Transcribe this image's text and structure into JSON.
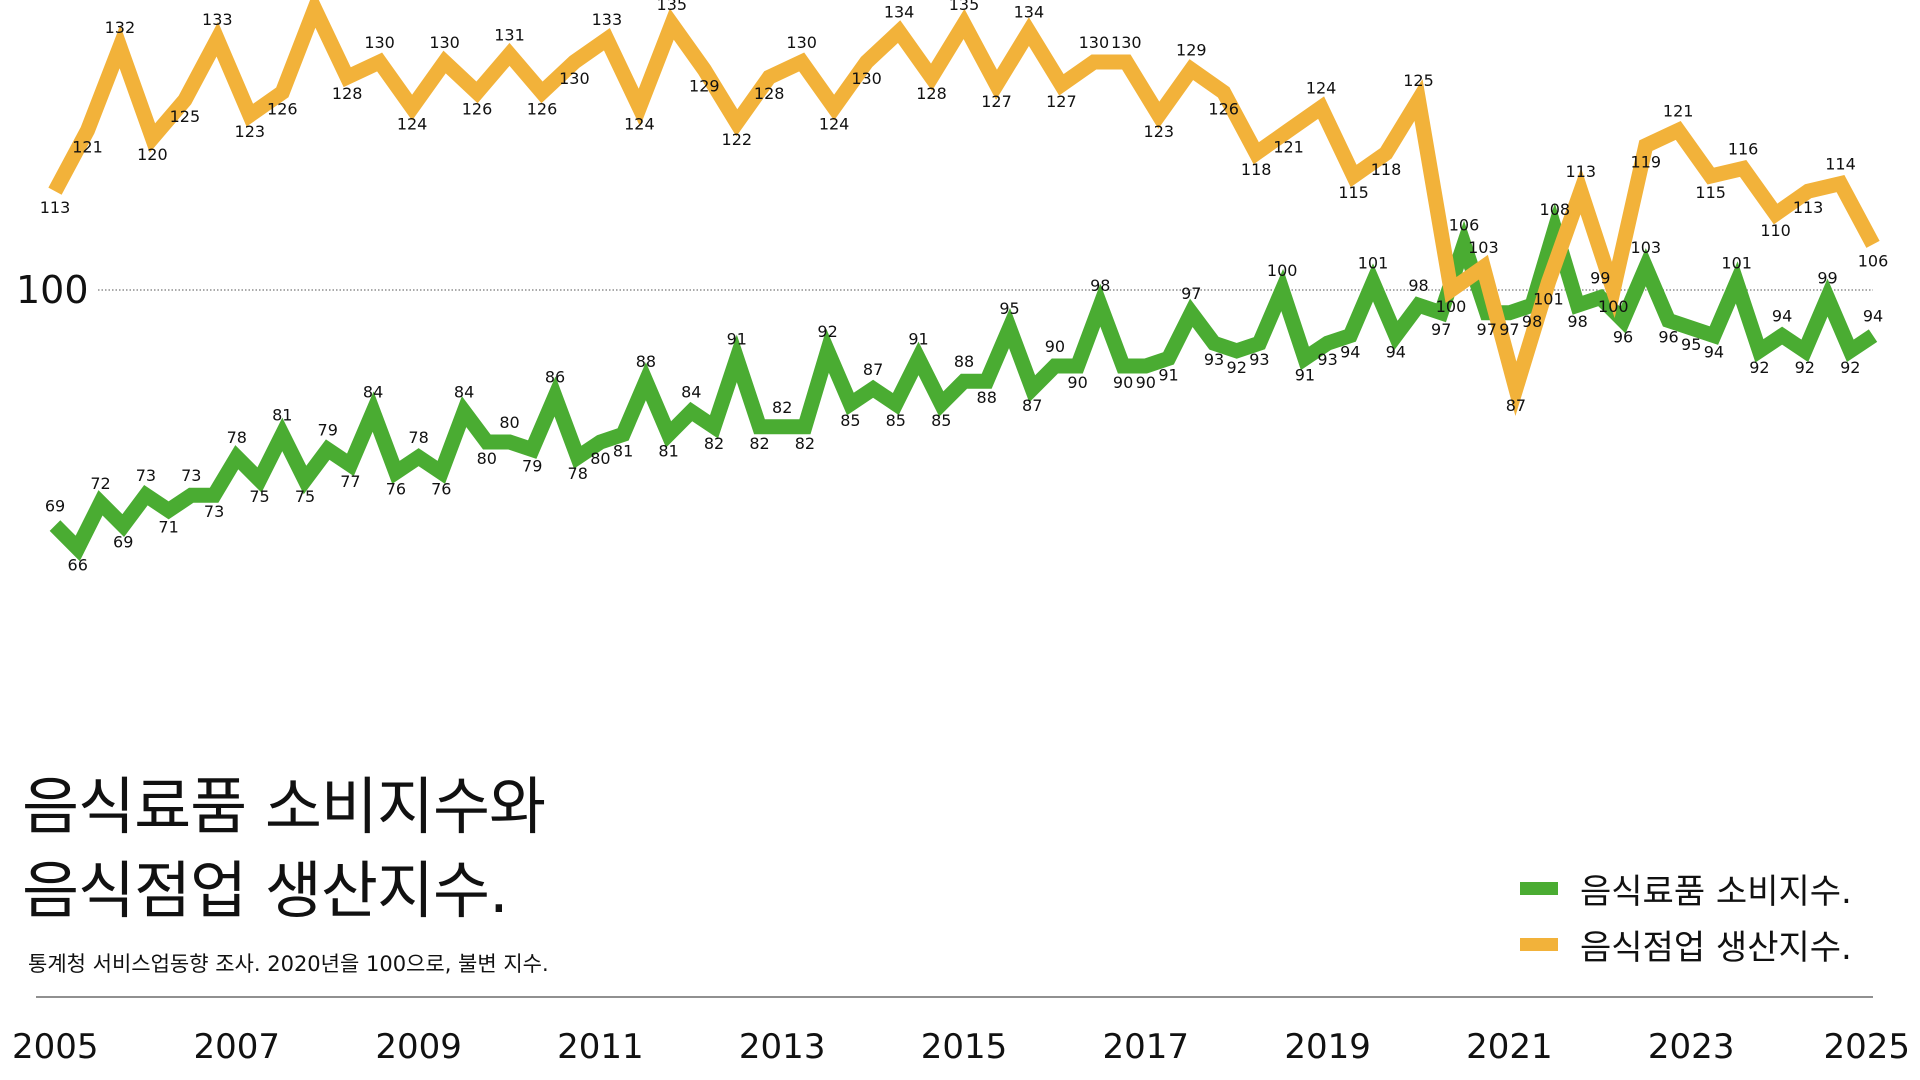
{
  "title_line1": "음식료품 소비지수와",
  "title_line2": "음식점업 생산지수.",
  "subtitle": "통계청 서비스업동향 조사. 2020년을 100으로, 불변 지수.",
  "legend": [
    {
      "label": "음식료품 소비지수.",
      "color": "#4aac32"
    },
    {
      "label": "음식점업 생산지수.",
      "color": "#f2b23a"
    }
  ],
  "chart_data": {
    "type": "line",
    "x_labels": [
      "2005",
      "2007",
      "2009",
      "2011",
      "2013",
      "2015",
      "2017",
      "2019",
      "2021",
      "2023",
      "2025"
    ],
    "reference_line": {
      "value": 100,
      "label": "100"
    },
    "series": [
      {
        "name": "음식료품 소비지수.",
        "color": "#4aac32",
        "values": [
          69,
          66,
          72,
          69,
          73,
          71,
          73,
          73,
          78,
          75,
          81,
          75,
          79,
          77,
          84,
          76,
          78,
          76,
          84,
          80,
          80,
          79,
          86,
          78,
          80,
          81,
          88,
          81,
          84,
          82,
          91,
          82,
          82,
          82,
          92,
          85,
          87,
          85,
          91,
          85,
          88,
          88,
          95,
          87,
          90,
          90,
          98,
          90,
          90,
          91,
          97,
          93,
          92,
          93,
          100,
          91,
          93,
          94,
          101,
          94,
          98,
          97,
          106,
          97,
          97,
          98,
          108,
          98,
          99,
          96,
          103,
          96,
          95,
          94,
          101,
          92,
          94,
          92,
          99,
          92,
          94
        ]
      },
      {
        "name": "음식점업 생산지수.",
        "color": "#f2b23a",
        "values": [
          113,
          121,
          132,
          120,
          125,
          133,
          123,
          126,
          137,
          128,
          130,
          124,
          130,
          126,
          131,
          126,
          130,
          133,
          124,
          135,
          129,
          122,
          128,
          130,
          124,
          130,
          134,
          128,
          135,
          127,
          134,
          127,
          130,
          130,
          123,
          129,
          126,
          118,
          121,
          124,
          115,
          118,
          125,
          100,
          103,
          87,
          101,
          113,
          100,
          119,
          121,
          115,
          116,
          110,
          113,
          114,
          106
        ]
      }
    ]
  }
}
